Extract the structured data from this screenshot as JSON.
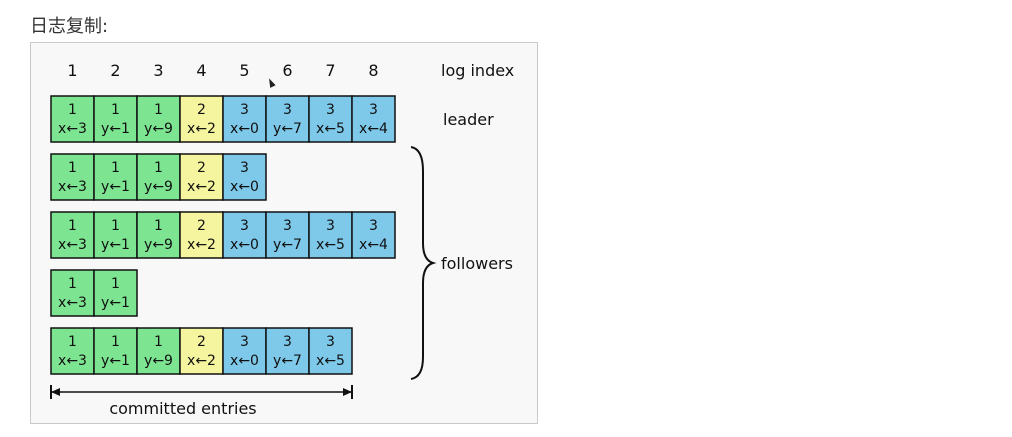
{
  "title": "日志复制:",
  "diagram": {
    "index_label": "log index",
    "indices": [
      "1",
      "2",
      "3",
      "4",
      "5",
      "6",
      "7",
      "8"
    ],
    "leader_label": "leader",
    "followers_label": "followers",
    "committed_label": "committed entries",
    "committed_through_index": 7,
    "term_colors": {
      "1": "#7de592",
      "2": "#f5f5a0",
      "3": "#7ec9ea"
    },
    "logs": [
      {
        "role": "leader",
        "entries": [
          {
            "term": "1",
            "cmd": "x←3"
          },
          {
            "term": "1",
            "cmd": "y←1"
          },
          {
            "term": "1",
            "cmd": "y←9"
          },
          {
            "term": "2",
            "cmd": "x←2"
          },
          {
            "term": "3",
            "cmd": "x←0"
          },
          {
            "term": "3",
            "cmd": "y←7"
          },
          {
            "term": "3",
            "cmd": "x←5"
          },
          {
            "term": "3",
            "cmd": "x←4"
          }
        ]
      },
      {
        "role": "follower",
        "entries": [
          {
            "term": "1",
            "cmd": "x←3"
          },
          {
            "term": "1",
            "cmd": "y←1"
          },
          {
            "term": "1",
            "cmd": "y←9"
          },
          {
            "term": "2",
            "cmd": "x←2"
          },
          {
            "term": "3",
            "cmd": "x←0"
          }
        ]
      },
      {
        "role": "follower",
        "entries": [
          {
            "term": "1",
            "cmd": "x←3"
          },
          {
            "term": "1",
            "cmd": "y←1"
          },
          {
            "term": "1",
            "cmd": "y←9"
          },
          {
            "term": "2",
            "cmd": "x←2"
          },
          {
            "term": "3",
            "cmd": "x←0"
          },
          {
            "term": "3",
            "cmd": "y←7"
          },
          {
            "term": "3",
            "cmd": "x←5"
          },
          {
            "term": "3",
            "cmd": "x←4"
          }
        ]
      },
      {
        "role": "follower",
        "entries": [
          {
            "term": "1",
            "cmd": "x←3"
          },
          {
            "term": "1",
            "cmd": "y←1"
          }
        ]
      },
      {
        "role": "follower",
        "entries": [
          {
            "term": "1",
            "cmd": "x←3"
          },
          {
            "term": "1",
            "cmd": "y←1"
          },
          {
            "term": "1",
            "cmd": "y←9"
          },
          {
            "term": "2",
            "cmd": "x←2"
          },
          {
            "term": "3",
            "cmd": "x←0"
          },
          {
            "term": "3",
            "cmd": "y←7"
          },
          {
            "term": "3",
            "cmd": "x←5"
          }
        ]
      }
    ]
  }
}
